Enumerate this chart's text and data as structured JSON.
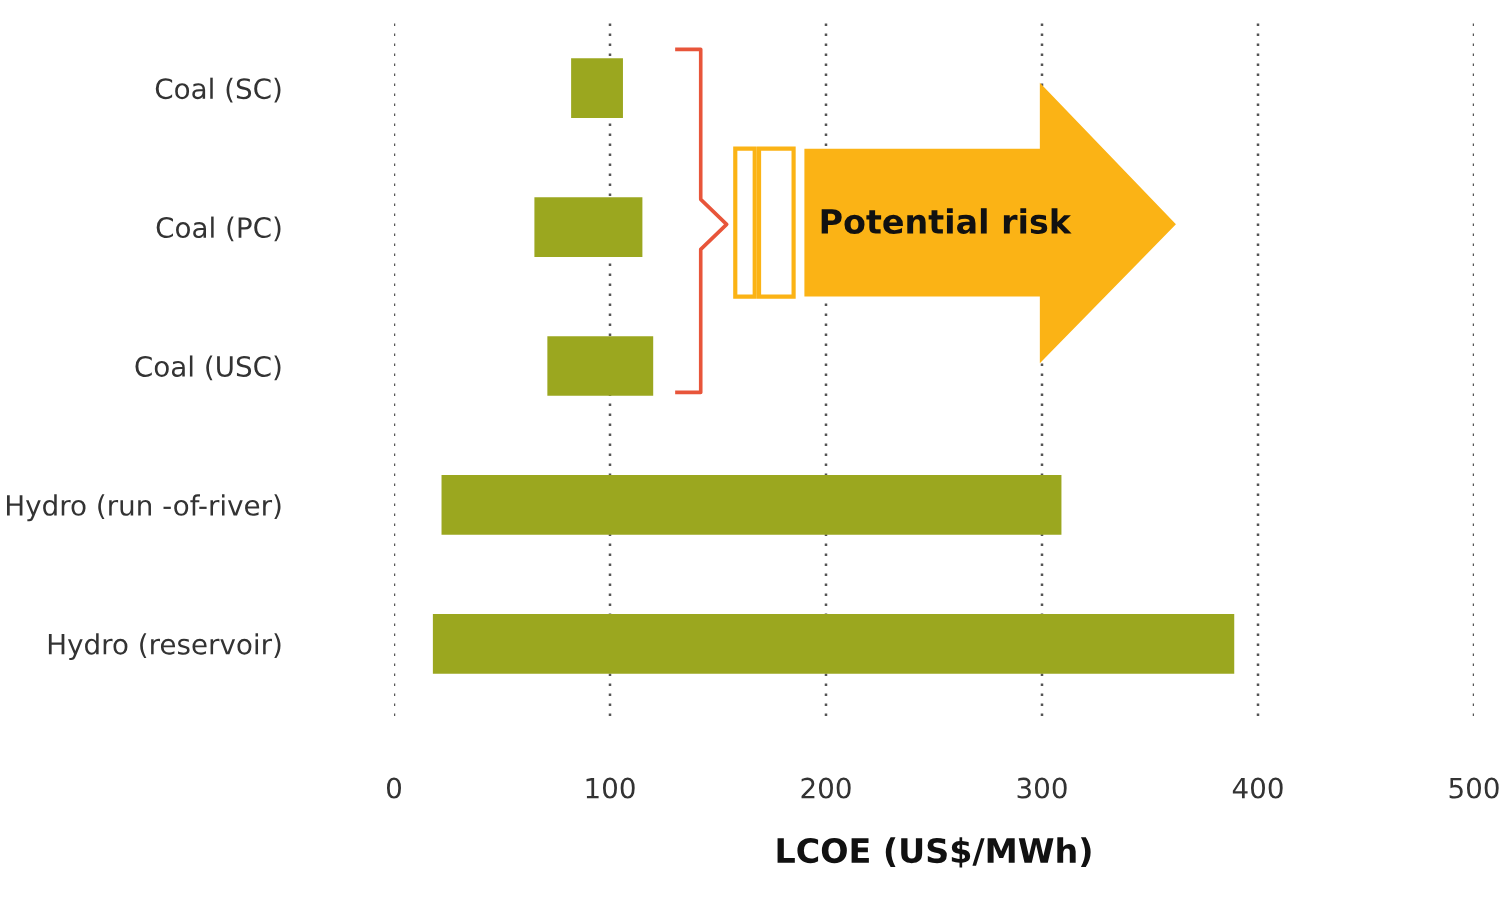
{
  "chart_data": {
    "type": "bar",
    "orientation": "horizontal",
    "xlabel": "LCOE (US$/MWh)",
    "categories": [
      "Coal (SC)",
      "Coal (PC)",
      "Coal (USC)",
      "Hydro (run -of-river)",
      "Hydro (reservoir)"
    ],
    "base": [
      82,
      65,
      71,
      22,
      18
    ],
    "values": [
      24,
      50,
      49,
      287,
      371
    ],
    "color": "#9ba71f",
    "xlim": [
      0,
      500
    ],
    "xticks": [
      0,
      100,
      200,
      300,
      400,
      500
    ],
    "grid": "x",
    "annotations": [
      "Potential risk"
    ]
  }
}
